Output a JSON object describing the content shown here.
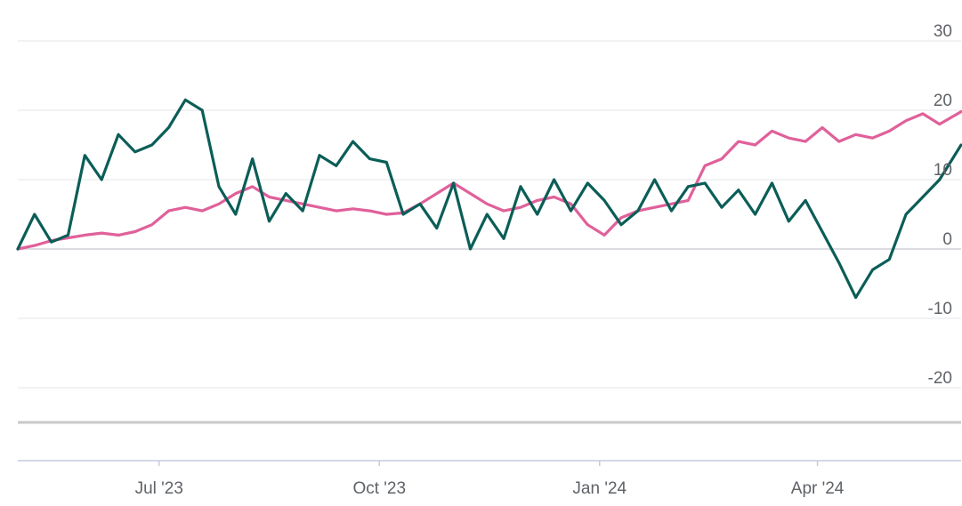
{
  "chart_data": {
    "type": "line",
    "ylim": [
      -25,
      30
    ],
    "y_ticks": [
      30,
      20,
      10,
      0,
      -10,
      -20
    ],
    "y_tick_labels": [
      "30",
      "20",
      "10",
      "0",
      "-10",
      "-20"
    ],
    "x_ticks": [
      "Jul '23",
      "Oct '23",
      "Jan '24",
      "Apr '24"
    ],
    "x_range": [
      "2023-05-03",
      "2024-05-31"
    ],
    "x_tick_dates": [
      "2023-07-01",
      "2023-10-01",
      "2024-01-01",
      "2024-04-01"
    ],
    "grid": true,
    "legend": "none",
    "series": [
      {
        "color": "#e0609a",
        "points": [
          [
            "2023-05-03",
            0.0
          ],
          [
            "2023-05-10",
            0.5
          ],
          [
            "2023-05-17",
            1.2
          ],
          [
            "2023-05-24",
            1.6
          ],
          [
            "2023-05-31",
            2.0
          ],
          [
            "2023-06-07",
            2.3
          ],
          [
            "2023-06-14",
            2.0
          ],
          [
            "2023-06-21",
            2.5
          ],
          [
            "2023-06-28",
            3.5
          ],
          [
            "2023-07-05",
            5.5
          ],
          [
            "2023-07-12",
            6.0
          ],
          [
            "2023-07-19",
            5.5
          ],
          [
            "2023-07-26",
            6.5
          ],
          [
            "2023-08-02",
            8.0
          ],
          [
            "2023-08-09",
            9.0
          ],
          [
            "2023-08-16",
            7.5
          ],
          [
            "2023-08-23",
            7.0
          ],
          [
            "2023-08-30",
            6.5
          ],
          [
            "2023-09-06",
            6.0
          ],
          [
            "2023-09-13",
            5.5
          ],
          [
            "2023-09-20",
            5.8
          ],
          [
            "2023-09-27",
            5.5
          ],
          [
            "2023-10-04",
            5.0
          ],
          [
            "2023-10-11",
            5.2
          ],
          [
            "2023-10-18",
            6.5
          ],
          [
            "2023-10-25",
            8.0
          ],
          [
            "2023-11-01",
            9.5
          ],
          [
            "2023-11-08",
            8.0
          ],
          [
            "2023-11-15",
            6.5
          ],
          [
            "2023-11-22",
            5.5
          ],
          [
            "2023-11-29",
            6.0
          ],
          [
            "2023-12-06",
            7.0
          ],
          [
            "2023-12-13",
            7.5
          ],
          [
            "2023-12-20",
            6.5
          ],
          [
            "2023-12-27",
            3.5
          ],
          [
            "2024-01-03",
            2.0
          ],
          [
            "2024-01-10",
            4.5
          ],
          [
            "2024-01-17",
            5.5
          ],
          [
            "2024-01-24",
            6.0
          ],
          [
            "2024-01-31",
            6.5
          ],
          [
            "2024-02-07",
            7.0
          ],
          [
            "2024-02-14",
            12.0
          ],
          [
            "2024-02-21",
            13.0
          ],
          [
            "2024-02-28",
            15.5
          ],
          [
            "2024-03-06",
            15.0
          ],
          [
            "2024-03-13",
            17.0
          ],
          [
            "2024-03-20",
            16.0
          ],
          [
            "2024-03-27",
            15.5
          ],
          [
            "2024-04-03",
            17.5
          ],
          [
            "2024-04-10",
            15.5
          ],
          [
            "2024-04-17",
            16.5
          ],
          [
            "2024-04-24",
            16.0
          ],
          [
            "2024-05-01",
            17.0
          ],
          [
            "2024-05-08",
            18.5
          ],
          [
            "2024-05-15",
            19.5
          ],
          [
            "2024-05-22",
            18.0
          ],
          [
            "2024-05-31",
            19.8
          ]
        ]
      },
      {
        "color": "#0b5e57",
        "points": [
          [
            "2023-05-03",
            0.0
          ],
          [
            "2023-05-10",
            5.0
          ],
          [
            "2023-05-17",
            1.0
          ],
          [
            "2023-05-24",
            2.0
          ],
          [
            "2023-05-31",
            13.5
          ],
          [
            "2023-06-07",
            10.0
          ],
          [
            "2023-06-14",
            16.5
          ],
          [
            "2023-06-21",
            14.0
          ],
          [
            "2023-06-28",
            15.0
          ],
          [
            "2023-07-05",
            17.5
          ],
          [
            "2023-07-12",
            21.5
          ],
          [
            "2023-07-19",
            20.0
          ],
          [
            "2023-07-26",
            9.0
          ],
          [
            "2023-08-02",
            5.0
          ],
          [
            "2023-08-09",
            13.0
          ],
          [
            "2023-08-16",
            4.0
          ],
          [
            "2023-08-23",
            8.0
          ],
          [
            "2023-08-30",
            5.5
          ],
          [
            "2023-09-06",
            13.5
          ],
          [
            "2023-09-13",
            12.0
          ],
          [
            "2023-09-20",
            15.5
          ],
          [
            "2023-09-27",
            13.0
          ],
          [
            "2023-10-04",
            12.5
          ],
          [
            "2023-10-11",
            5.0
          ],
          [
            "2023-10-18",
            6.5
          ],
          [
            "2023-10-25",
            3.0
          ],
          [
            "2023-11-01",
            9.5
          ],
          [
            "2023-11-08",
            0.0
          ],
          [
            "2023-11-15",
            5.0
          ],
          [
            "2023-11-22",
            1.5
          ],
          [
            "2023-11-29",
            9.0
          ],
          [
            "2023-12-06",
            5.0
          ],
          [
            "2023-12-13",
            10.0
          ],
          [
            "2023-12-20",
            5.5
          ],
          [
            "2023-12-27",
            9.5
          ],
          [
            "2024-01-03",
            7.0
          ],
          [
            "2024-01-10",
            3.5
          ],
          [
            "2024-01-17",
            5.5
          ],
          [
            "2024-01-24",
            10.0
          ],
          [
            "2024-01-31",
            5.5
          ],
          [
            "2024-02-07",
            9.0
          ],
          [
            "2024-02-14",
            9.5
          ],
          [
            "2024-02-21",
            6.0
          ],
          [
            "2024-02-28",
            8.5
          ],
          [
            "2024-03-06",
            5.0
          ],
          [
            "2024-03-13",
            9.5
          ],
          [
            "2024-03-20",
            4.0
          ],
          [
            "2024-03-27",
            7.0
          ],
          [
            "2024-04-03",
            2.5
          ],
          [
            "2024-04-10",
            -2.0
          ],
          [
            "2024-04-17",
            -7.0
          ],
          [
            "2024-04-24",
            -3.0
          ],
          [
            "2024-05-01",
            -1.5
          ],
          [
            "2024-05-08",
            5.0
          ],
          [
            "2024-05-15",
            7.5
          ],
          [
            "2024-05-22",
            10.0
          ],
          [
            "2024-05-31",
            15.0
          ]
        ]
      }
    ]
  }
}
